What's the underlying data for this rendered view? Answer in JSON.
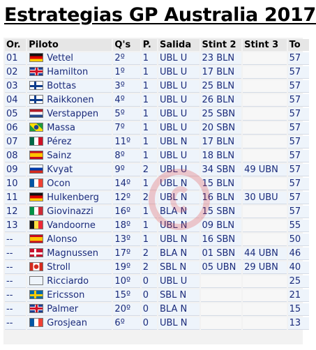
{
  "title": "Estrategias GP Australia 2017",
  "headers": [
    "Or.",
    "Piloto",
    "Q's",
    "P.",
    "Salida",
    "Stint 2",
    "Stint 3",
    "To"
  ],
  "rows": [
    {
      "pos": "01",
      "flag": "ger",
      "driver": "Vettel",
      "q": "2º",
      "p": "1",
      "salida": "UBL U",
      "stint2": "23 BLN",
      "stint3": "",
      "to": "57"
    },
    {
      "pos": "02",
      "flag": "gbr",
      "driver": "Hamilton",
      "q": "1º",
      "p": "1",
      "salida": "UBL U",
      "stint2": "17 BLN",
      "stint3": "",
      "to": "57"
    },
    {
      "pos": "03",
      "flag": "fin",
      "driver": "Bottas",
      "q": "3º",
      "p": "1",
      "salida": "UBL U",
      "stint2": "25 BLN",
      "stint3": "",
      "to": "57"
    },
    {
      "pos": "04",
      "flag": "fin",
      "driver": "Raikkonen",
      "q": "4º",
      "p": "1",
      "salida": "UBL U",
      "stint2": "26 BLN",
      "stint3": "",
      "to": "57"
    },
    {
      "pos": "05",
      "flag": "ned",
      "driver": "Verstappen",
      "q": "5º",
      "p": "1",
      "salida": "UBL U",
      "stint2": "25 SBN",
      "stint3": "",
      "to": "57"
    },
    {
      "pos": "06",
      "flag": "bra",
      "driver": "Massa",
      "q": "7º",
      "p": "1",
      "salida": "UBL U",
      "stint2": "20 SBN",
      "stint3": "",
      "to": "57"
    },
    {
      "pos": "07",
      "flag": "mex",
      "driver": "Pérez",
      "q": "11º",
      "p": "1",
      "salida": "UBL N",
      "stint2": "17 BLN",
      "stint3": "",
      "to": "57"
    },
    {
      "pos": "08",
      "flag": "esp",
      "driver": "Sainz",
      "q": "8º",
      "p": "1",
      "salida": "UBL U",
      "stint2": "18 BLN",
      "stint3": "",
      "to": "57"
    },
    {
      "pos": "09",
      "flag": "rus",
      "driver": "Kvyat",
      "q": "9º",
      "p": "2",
      "salida": "UBL U",
      "stint2": "34 SBN",
      "stint3": "49 UBN",
      "to": "57"
    },
    {
      "pos": "10",
      "flag": "fra",
      "driver": "Ocon",
      "q": "14º",
      "p": "1",
      "salida": "UBL N",
      "stint2": "15 BLN",
      "stint3": "",
      "to": "57"
    },
    {
      "pos": "11",
      "flag": "ger",
      "driver": "Hulkenberg",
      "q": "12º",
      "p": "2",
      "salida": "UBL N",
      "stint2": "16 BLN",
      "stint3": "30 UBU",
      "to": "57"
    },
    {
      "pos": "12",
      "flag": "ita",
      "driver": "Giovinazzi",
      "q": "16º",
      "p": "1",
      "salida": "BLA N",
      "stint2": "15 SBN",
      "stint3": "",
      "to": "57"
    },
    {
      "pos": "13",
      "flag": "bel",
      "driver": "Vandoorne",
      "q": "18º",
      "p": "1",
      "salida": "UBL N",
      "stint2": "09 BLN",
      "stint3": "",
      "to": "55"
    },
    {
      "pos": "--",
      "flag": "esp",
      "driver": "Alonso",
      "q": "13º",
      "p": "1",
      "salida": "UBL N",
      "stint2": "16 SBN",
      "stint3": "",
      "to": "50"
    },
    {
      "pos": "--",
      "flag": "den",
      "driver": "Magnussen",
      "q": "17º",
      "p": "2",
      "salida": "BLA N",
      "stint2": "01 SBN",
      "stint3": "44 UBN",
      "to": "46"
    },
    {
      "pos": "--",
      "flag": "can",
      "driver": "Stroll",
      "q": "19º",
      "p": "2",
      "salida": "SBL N",
      "stint2": "05 UBN",
      "stint3": "29 UBN",
      "to": "40"
    },
    {
      "pos": "--",
      "flag": "aus",
      "driver": "Ricciardo",
      "q": "10º",
      "p": "0",
      "salida": "UBL U",
      "stint2": "",
      "stint3": "",
      "to": "25"
    },
    {
      "pos": "--",
      "flag": "swe",
      "driver": "Ericsson",
      "q": "15º",
      "p": "0",
      "salida": "SBL N",
      "stint2": "",
      "stint3": "",
      "to": "21"
    },
    {
      "pos": "--",
      "flag": "gbr",
      "driver": "Palmer",
      "q": "20º",
      "p": "0",
      "salida": "BLA N",
      "stint2": "",
      "stint3": "",
      "to": "15"
    },
    {
      "pos": "--",
      "flag": "fra",
      "driver": "Grosjean",
      "q": "6º",
      "p": "0",
      "salida": "UBL N",
      "stint2": "",
      "stint3": "",
      "to": "13"
    }
  ],
  "colors": {
    "text": "#1a2a7a",
    "header_bg": "#e6e6e6",
    "cell_bg": "#eef4fb",
    "watermark": "#e1373c"
  }
}
